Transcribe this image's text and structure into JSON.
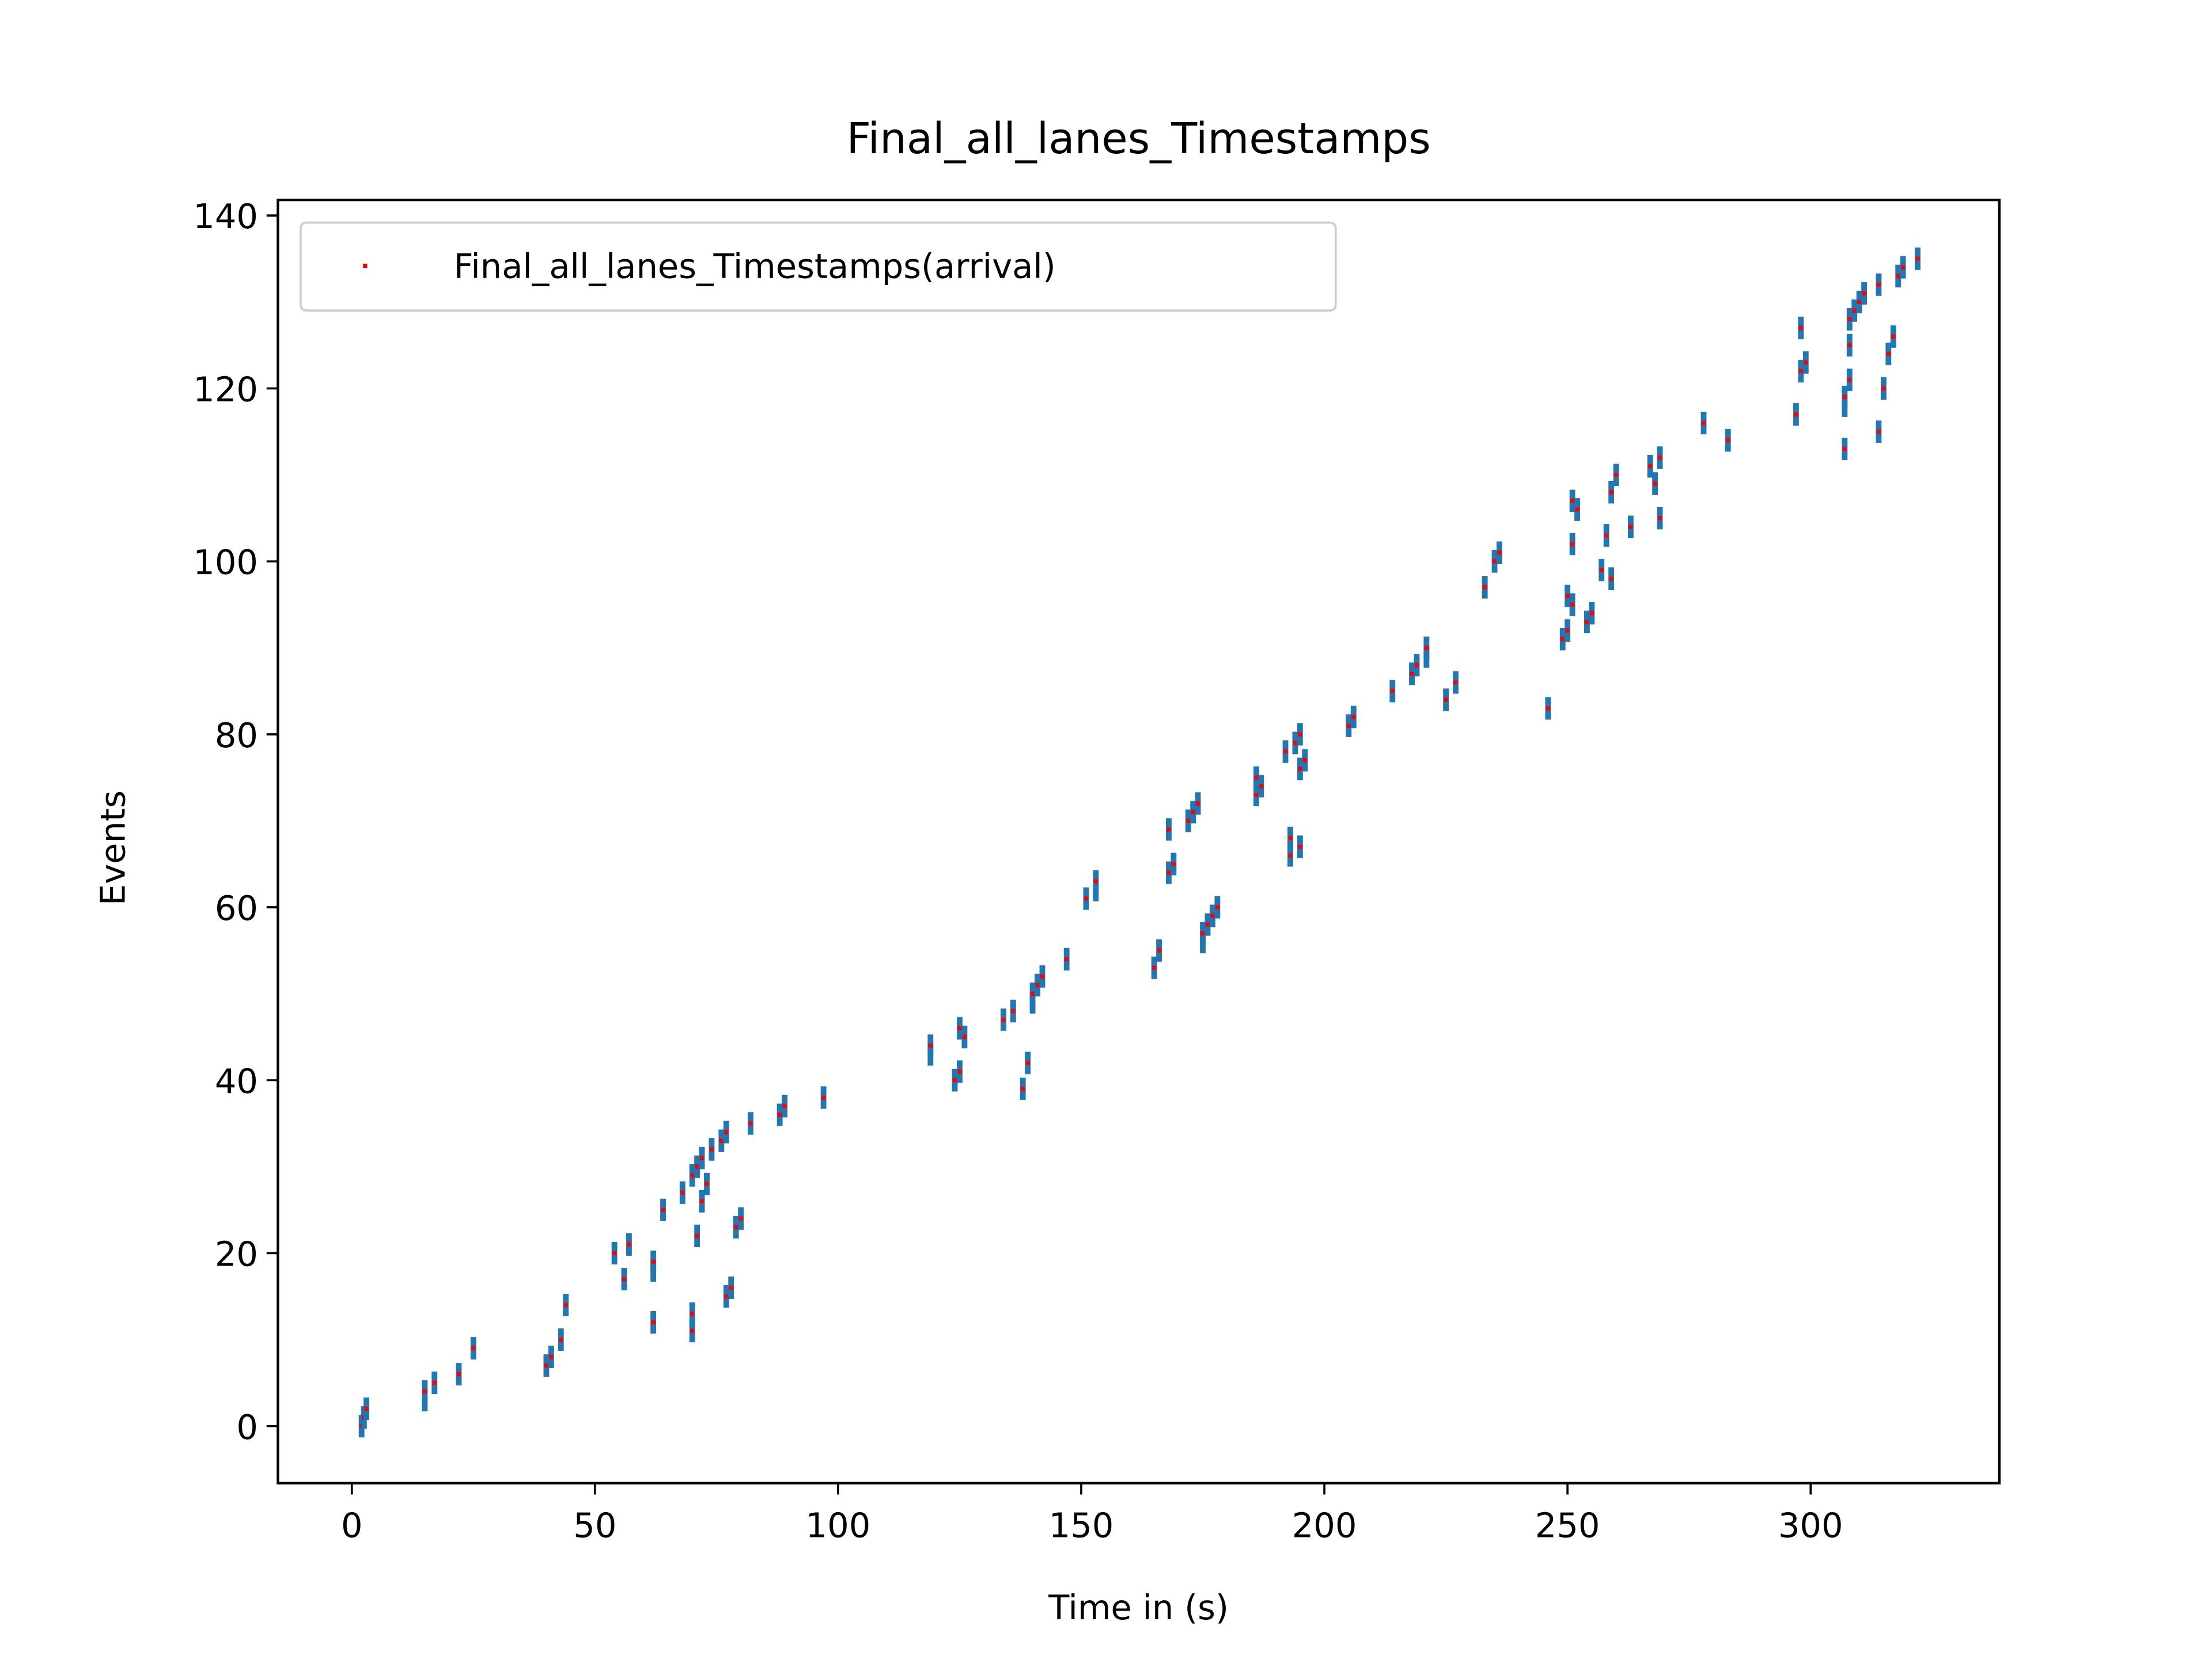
{
  "chart_data": {
    "type": "scatter",
    "title": "Final_all_lanes_Timestamps",
    "xlabel": "Time in (s)",
    "ylabel": "Events",
    "x": [
      2,
      2.5,
      3,
      15,
      15,
      17,
      22,
      40,
      41,
      25,
      43,
      70,
      62,
      70,
      44,
      77,
      78,
      56,
      62,
      62,
      54,
      57,
      71,
      79,
      80,
      64,
      72,
      68,
      73,
      70,
      71,
      72,
      74,
      76,
      77,
      82,
      88,
      89,
      97,
      138,
      124,
      125,
      139,
      119,
      119,
      126,
      125,
      134,
      136,
      140,
      140,
      141,
      142,
      165,
      147,
      166,
      175,
      175,
      176,
      177,
      178,
      151,
      153,
      153,
      168,
      169,
      193,
      195,
      193,
      168,
      172,
      173,
      174,
      186,
      187,
      186,
      195,
      196,
      192,
      194,
      195,
      205,
      206,
      246,
      225,
      214,
      227,
      218,
      219,
      221,
      221,
      249,
      250,
      254,
      255,
      251,
      250,
      233,
      259,
      257,
      235,
      236,
      251,
      258,
      263,
      269,
      252,
      251,
      259,
      268,
      260,
      267,
      269,
      307,
      283,
      314,
      278,
      297,
      307,
      307,
      315,
      308,
      298,
      299,
      316,
      308,
      317,
      298,
      308,
      309,
      310,
      311,
      314,
      318,
      319,
      322
    ],
    "series": [
      {
        "name": "Final_all_lanes_Timestamps(arrival)",
        "color": "#ff0000",
        "values": [
          0,
          1,
          2,
          3,
          4,
          5,
          6,
          7,
          8,
          9,
          10,
          11,
          12,
          13,
          14,
          15,
          16,
          17,
          18,
          19,
          20,
          21,
          22,
          23,
          24,
          25,
          26,
          27,
          28,
          29,
          30,
          31,
          32,
          33,
          34,
          35,
          36,
          37,
          38,
          39,
          40,
          41,
          42,
          43,
          44,
          45,
          46,
          47,
          48,
          49,
          50,
          51,
          52,
          53,
          54,
          55,
          56,
          57,
          58,
          59,
          60,
          61,
          62,
          63,
          64,
          65,
          66,
          67,
          68,
          69,
          70,
          71,
          72,
          73,
          74,
          75,
          76,
          77,
          78,
          79,
          80,
          81,
          82,
          83,
          84,
          85,
          86,
          87,
          88,
          89,
          90,
          91,
          92,
          93,
          94,
          95,
          96,
          97,
          98,
          99,
          100,
          101,
          102,
          103,
          104,
          105,
          106,
          107,
          108,
          109,
          110,
          111,
          112,
          113,
          114,
          115,
          116,
          117,
          118,
          119,
          120,
          121,
          122,
          123,
          124,
          125,
          126,
          127,
          128,
          129,
          130,
          131,
          132,
          133,
          134,
          135
        ]
      }
    ],
    "yerr": 1.3,
    "errorbar_color": "#1f77b4",
    "xlim": [
      -15.2,
      338.8
    ],
    "ylim": [
      -6.6,
      141.8
    ],
    "xticks": [
      0,
      50,
      100,
      150,
      200,
      250,
      300
    ],
    "yticks": [
      0,
      20,
      40,
      60,
      80,
      100,
      120,
      140
    ],
    "legend": "upper left",
    "grid": false
  }
}
